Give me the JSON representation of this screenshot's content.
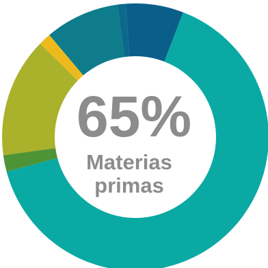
{
  "chart_data": {
    "type": "pie",
    "style": "donut",
    "center_value": "65%",
    "center_label_line1": "Materias",
    "center_label_line2": "primas",
    "slices": [
      {
        "value": 65.0,
        "color": "#0aa9a3"
      },
      {
        "value": 2.0,
        "color": "#4e9436"
      },
      {
        "value": 14.5,
        "color": "#aab12b"
      },
      {
        "value": 1.5,
        "color": "#ecba1d"
      },
      {
        "value": 9.0,
        "color": "#0e7c8a"
      },
      {
        "value": 1.0,
        "color": "#0b6a8c"
      },
      {
        "value": 7.0,
        "color": "#0a5f8a"
      }
    ],
    "start_angle_deg": 21,
    "text_color": "#8c8c8c"
  }
}
